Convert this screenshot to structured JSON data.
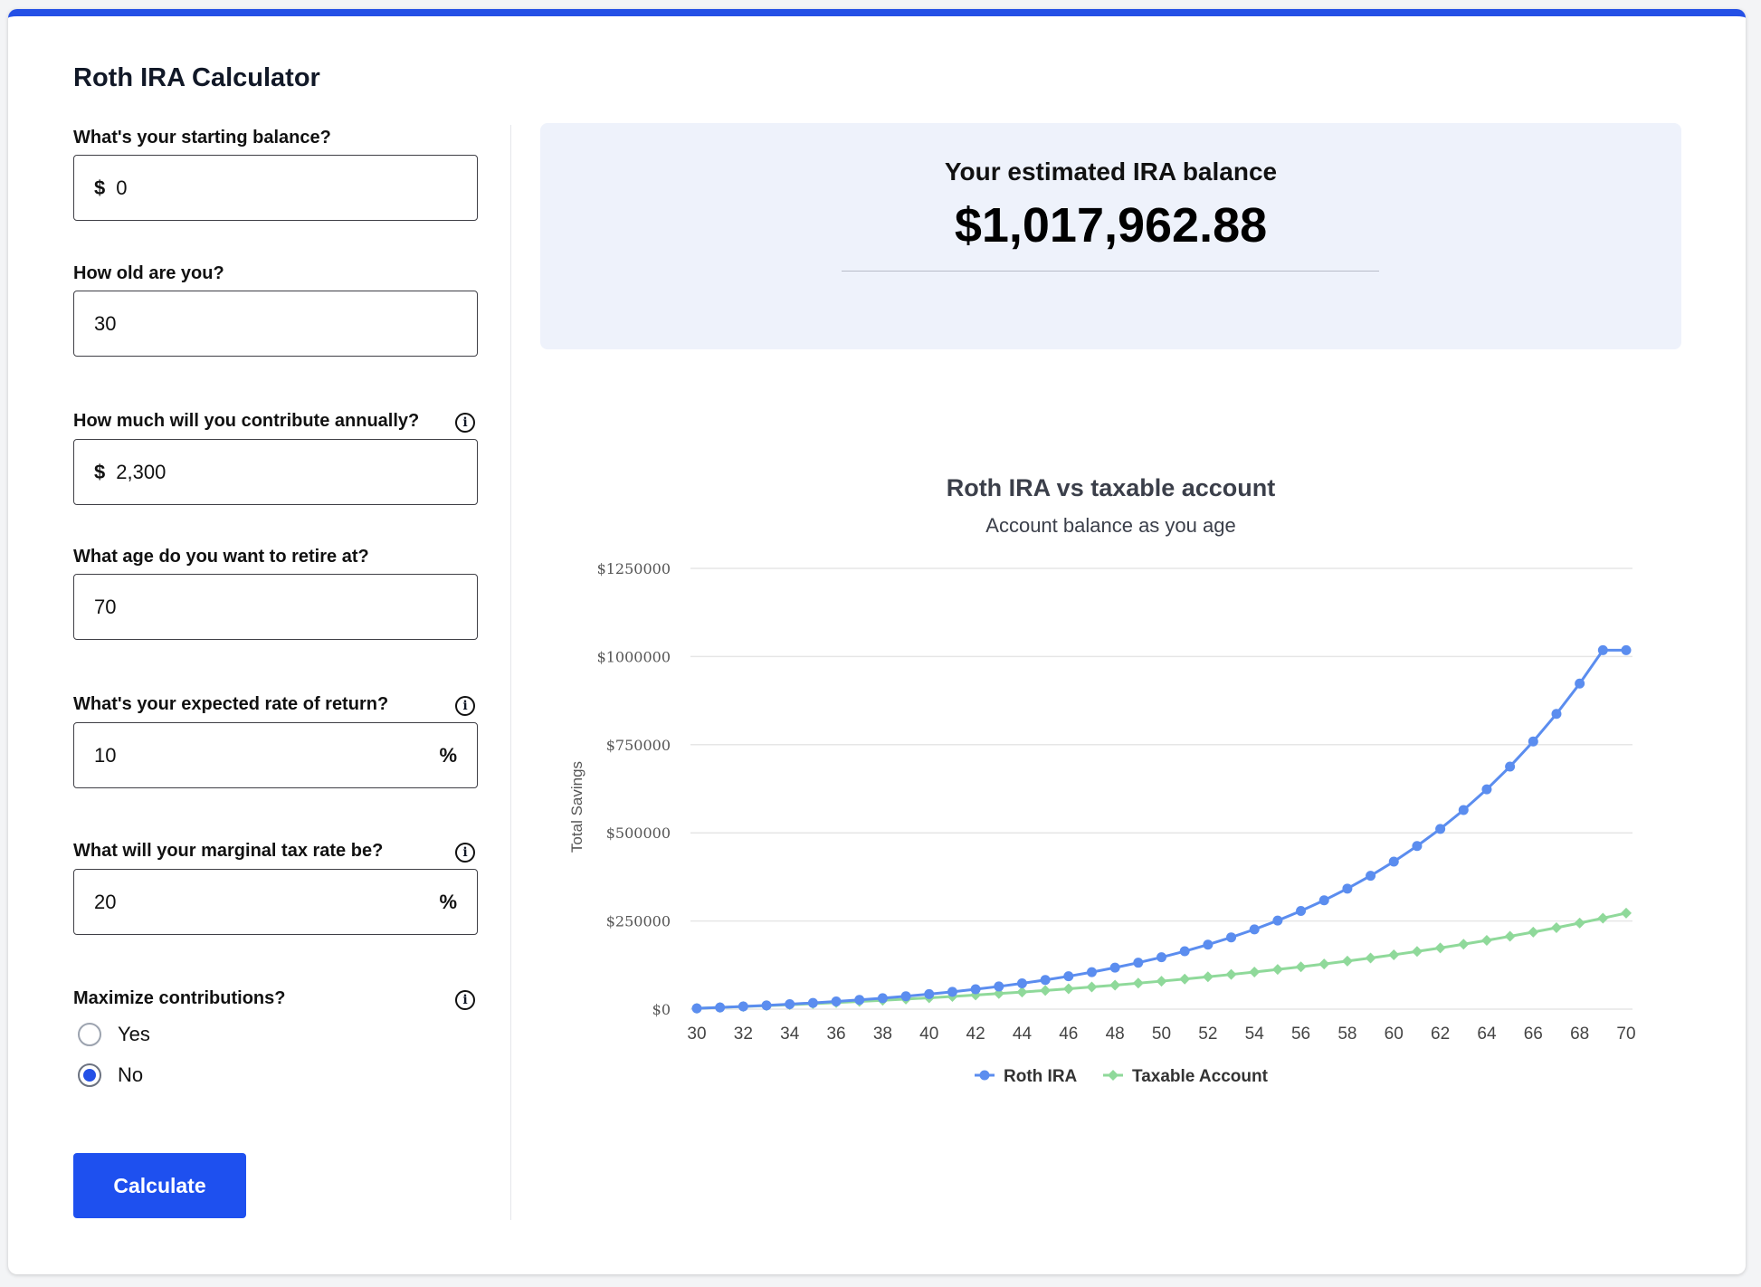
{
  "calculator": {
    "title": "Roth IRA Calculator",
    "fields": {
      "starting_balance": {
        "label": "What's your starting balance?",
        "prefix": "$",
        "value": "0"
      },
      "age": {
        "label": "How old are you?",
        "value": "30"
      },
      "annual_contribution": {
        "label": "How much will you contribute annually?",
        "prefix": "$",
        "value": "2,300",
        "info_icon": "info-icon"
      },
      "retire_age": {
        "label": "What age do you want to retire at?",
        "value": "70"
      },
      "rate_of_return": {
        "label": "What's your expected rate of return?",
        "value": "10",
        "suffix": "%",
        "info_icon": "info-icon"
      },
      "tax_rate": {
        "label": "What will your marginal tax rate be?",
        "value": "20",
        "suffix": "%",
        "info_icon": "info-icon"
      }
    },
    "maximize": {
      "label": "Maximize contributions?",
      "info_icon": "info-icon",
      "options": [
        {
          "label": "Yes",
          "checked": false
        },
        {
          "label": "No",
          "checked": true
        }
      ]
    },
    "calculate_label": "Calculate"
  },
  "result": {
    "label": "Your estimated IRA balance",
    "value": "$1,017,962.88"
  },
  "colors": {
    "accent": "#1e50ef",
    "panel_bg": "#eef2fb",
    "roth_series": "#5b8def",
    "taxable_series": "#8fd99a"
  },
  "chart_data": {
    "type": "line",
    "title": "Roth IRA vs taxable account",
    "subtitle": "Account balance as you age",
    "ylabel": "Total Savings",
    "xlabel": "",
    "ylim": [
      0,
      1250000
    ],
    "yticks": [
      0,
      250000,
      500000,
      750000,
      1000000,
      1250000
    ],
    "ytick_labels": [
      "$0",
      "$250000",
      "$500000",
      "$750000",
      "$1000000",
      "$1250000"
    ],
    "xticks": [
      30,
      32,
      34,
      36,
      38,
      40,
      42,
      44,
      46,
      48,
      50,
      52,
      54,
      56,
      58,
      60,
      62,
      64,
      66,
      68,
      70
    ],
    "x": [
      30,
      31,
      32,
      33,
      34,
      35,
      36,
      37,
      38,
      39,
      40,
      41,
      42,
      43,
      44,
      45,
      46,
      47,
      48,
      49,
      50,
      51,
      52,
      53,
      54,
      55,
      56,
      57,
      58,
      59,
      60,
      61,
      62,
      63,
      64,
      65,
      66,
      67,
      68,
      69,
      70
    ],
    "grid": true,
    "legend_position": "bottom",
    "series": [
      {
        "name": "Roth IRA",
        "marker": "circle",
        "values": [
          2300,
          4830,
          7613,
          10674,
          14042,
          17746,
          21821,
          26303,
          31233,
          36656,
          42622,
          49184,
          56402,
          64343,
          73077,
          82685,
          93253,
          104879,
          117667,
          131733,
          147207,
          164227,
          182950,
          203545,
          226199,
          251119,
          278531,
          308684,
          341853,
          378338,
          418472,
          462619,
          511181,
          564599,
          623359,
          687995,
          759094,
          837304,
          923334,
          1017963,
          1017963
        ]
      },
      {
        "name": "Taxable Account",
        "marker": "diamond",
        "values": [
          2300,
          4708,
          7229,
          9868,
          12631,
          15524,
          18552,
          21723,
          25043,
          28519,
          32157,
          35967,
          39955,
          44131,
          48502,
          53079,
          57871,
          62888,
          68141,
          73640,
          79398,
          85425,
          91736,
          98343,
          105260,
          112502,
          120084,
          128022,
          136333,
          145035,
          154145,
          163682,
          173668,
          184122,
          195068,
          206528,
          218525,
          231086,
          244237,
          258005,
          272420
        ]
      }
    ]
  }
}
